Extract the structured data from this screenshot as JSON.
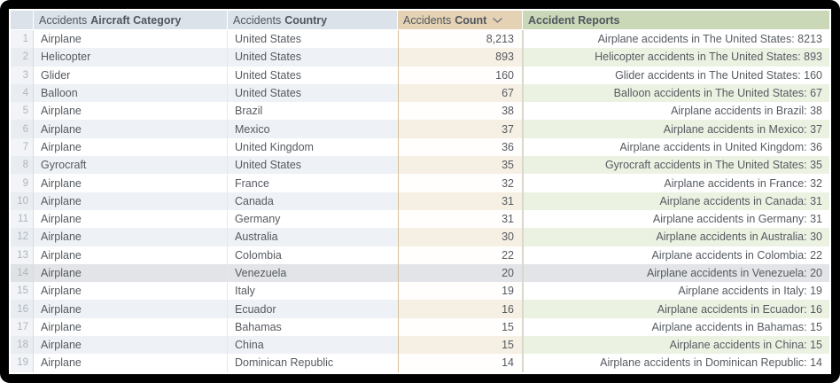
{
  "table": {
    "columns": {
      "row_number": {
        "label": ""
      },
      "aircraft_category": {
        "prefix": "Accidents",
        "label": "Aircraft Category"
      },
      "country": {
        "prefix": "Accidents",
        "label": "Country"
      },
      "count": {
        "prefix": "Accidents",
        "label": "Count",
        "sort": "descending",
        "sort_icon": "chevron-down"
      },
      "reports": {
        "label": "Accident Reports"
      }
    },
    "highlighted_row": 14,
    "rows": [
      {
        "num": "1",
        "category": "Airplane",
        "country": "United States",
        "count": "8,213",
        "report": "Airplane accidents in The United States: 8213"
      },
      {
        "num": "2",
        "category": "Helicopter",
        "country": "United States",
        "count": "893",
        "report": "Helicopter accidents in The United States: 893"
      },
      {
        "num": "3",
        "category": "Glider",
        "country": "United States",
        "count": "160",
        "report": "Glider accidents in The United States: 160"
      },
      {
        "num": "4",
        "category": "Balloon",
        "country": "United States",
        "count": "67",
        "report": "Balloon accidents in The United States: 67"
      },
      {
        "num": "5",
        "category": "Airplane",
        "country": "Brazil",
        "count": "38",
        "report": "Airplane accidents in Brazil: 38"
      },
      {
        "num": "6",
        "category": "Airplane",
        "country": "Mexico",
        "count": "37",
        "report": "Airplane accidents in Mexico: 37"
      },
      {
        "num": "7",
        "category": "Airplane",
        "country": "United Kingdom",
        "count": "36",
        "report": "Airplane accidents in United Kingdom: 36"
      },
      {
        "num": "8",
        "category": "Gyrocraft",
        "country": "United States",
        "count": "35",
        "report": "Gyrocraft accidents in The United States: 35"
      },
      {
        "num": "9",
        "category": "Airplane",
        "country": "France",
        "count": "32",
        "report": "Airplane accidents in France: 32"
      },
      {
        "num": "10",
        "category": "Airplane",
        "country": "Canada",
        "count": "31",
        "report": "Airplane accidents in Canada: 31"
      },
      {
        "num": "11",
        "category": "Airplane",
        "country": "Germany",
        "count": "31",
        "report": "Airplane accidents in Germany: 31"
      },
      {
        "num": "12",
        "category": "Airplane",
        "country": "Australia",
        "count": "30",
        "report": "Airplane accidents in Australia: 30"
      },
      {
        "num": "13",
        "category": "Airplane",
        "country": "Colombia",
        "count": "22",
        "report": "Airplane accidents in Colombia: 22"
      },
      {
        "num": "14",
        "category": "Airplane",
        "country": "Venezuela",
        "count": "20",
        "report": "Airplane accidents in Venezuela: 20"
      },
      {
        "num": "15",
        "category": "Airplane",
        "country": "Italy",
        "count": "19",
        "report": "Airplane accidents in Italy: 19"
      },
      {
        "num": "16",
        "category": "Airplane",
        "country": "Ecuador",
        "count": "16",
        "report": "Airplane accidents in Ecuador: 16"
      },
      {
        "num": "17",
        "category": "Airplane",
        "country": "Bahamas",
        "count": "15",
        "report": "Airplane accidents in Bahamas: 15"
      },
      {
        "num": "18",
        "category": "Airplane",
        "country": "China",
        "count": "15",
        "report": "Airplane accidents in China: 15"
      },
      {
        "num": "19",
        "category": "Airplane",
        "country": "Dominican Republic",
        "count": "14",
        "report": "Airplane accidents in Dominican Republic: 14"
      }
    ]
  },
  "colors": {
    "header_default_bg": "#dce2e9",
    "header_count_bg": "#e5d2b4",
    "header_reports_bg": "#cbd8b8",
    "row_even_bg": "#eef1f5",
    "row_even_count_bg": "#f6efe3",
    "row_even_reports_bg": "#ecf2e2",
    "highlight_bg": "#e2e4e7",
    "frame_bg": "#000000"
  }
}
